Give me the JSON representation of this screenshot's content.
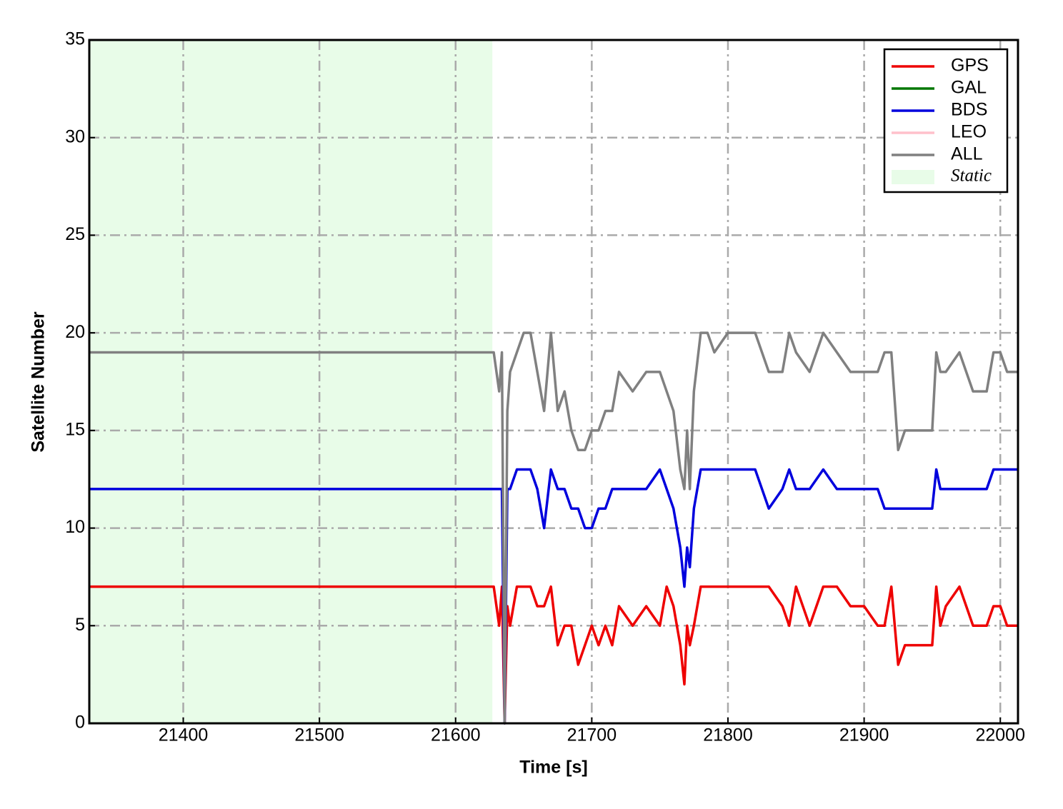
{
  "chart_data": {
    "type": "line",
    "xlabel": "Time [s]",
    "ylabel": "Satellite Number",
    "xlim": [
      21331,
      22013
    ],
    "ylim": [
      0,
      35
    ],
    "xticks": [
      21400,
      21500,
      21600,
      21700,
      21800,
      21900,
      22000
    ],
    "yticks": [
      0,
      5,
      10,
      15,
      20,
      25,
      30,
      35
    ],
    "grid": true,
    "legend": "upper right",
    "shaded_region": {
      "name": "Static",
      "color": "#e8fce8",
      "x": [
        21331,
        21627
      ]
    },
    "x": [
      21331,
      21628,
      21632,
      21634,
      21636,
      21638,
      21640,
      21645,
      21650,
      21655,
      21660,
      21665,
      21670,
      21675,
      21680,
      21685,
      21690,
      21695,
      21700,
      21705,
      21710,
      21715,
      21720,
      21730,
      21740,
      21750,
      21755,
      21760,
      21765,
      21768,
      21770,
      21772,
      21775,
      21780,
      21785,
      21790,
      21800,
      21810,
      21820,
      21830,
      21840,
      21845,
      21850,
      21860,
      21870,
      21880,
      21890,
      21900,
      21910,
      21915,
      21920,
      21925,
      21930,
      21940,
      21950,
      21953,
      21956,
      21960,
      21970,
      21980,
      21990,
      21995,
      22000,
      22005,
      22013
    ],
    "series": [
      {
        "name": "GPS",
        "color": "#ee0000",
        "values": [
          7,
          7,
          5,
          7,
          0,
          6,
          5,
          7,
          7,
          7,
          6,
          6,
          7,
          4,
          5,
          5,
          3,
          4,
          5,
          4,
          5,
          4,
          6,
          5,
          6,
          5,
          7,
          6,
          4,
          2,
          5,
          4,
          5,
          7,
          7,
          7,
          7,
          7,
          7,
          7,
          6,
          5,
          7,
          5,
          7,
          7,
          6,
          6,
          5,
          5,
          7,
          3,
          4,
          4,
          4,
          7,
          5,
          6,
          7,
          5,
          5,
          6,
          6,
          5,
          5
        ]
      },
      {
        "name": "GAL",
        "color": "#007700",
        "values": [
          null,
          null,
          null,
          null,
          null,
          null,
          null,
          null,
          null,
          null,
          null,
          null,
          null,
          null,
          null,
          null,
          null,
          null,
          null,
          null,
          null,
          null,
          null,
          null,
          null,
          null,
          null,
          null,
          null,
          null,
          null,
          null,
          null,
          null,
          null,
          null,
          null,
          null,
          null,
          null,
          null,
          null,
          null,
          null,
          null,
          null,
          null,
          null,
          null,
          null,
          null,
          null,
          null,
          null,
          null,
          null,
          null,
          null,
          null,
          null,
          null,
          null,
          null,
          null,
          null
        ]
      },
      {
        "name": "BDS",
        "color": "#0000dd",
        "values": [
          12,
          12,
          12,
          12,
          0,
          12,
          12,
          13,
          13,
          13,
          12,
          10,
          13,
          12,
          12,
          11,
          11,
          10,
          10,
          11,
          11,
          12,
          12,
          12,
          12,
          13,
          12,
          11,
          9,
          7,
          9,
          8,
          11,
          13,
          13,
          13,
          13,
          13,
          13,
          11,
          12,
          13,
          12,
          12,
          13,
          12,
          12,
          12,
          12,
          11,
          11,
          11,
          11,
          11,
          11,
          13,
          12,
          12,
          12,
          12,
          12,
          13,
          13,
          13,
          13
        ]
      },
      {
        "name": "LEO",
        "color": "#ffc0cb",
        "values": [
          null,
          null,
          null,
          null,
          null,
          null,
          null,
          null,
          null,
          null,
          null,
          null,
          null,
          null,
          null,
          null,
          null,
          null,
          null,
          null,
          null,
          null,
          null,
          null,
          null,
          null,
          null,
          null,
          null,
          null,
          null,
          null,
          null,
          null,
          null,
          null,
          null,
          null,
          null,
          null,
          null,
          null,
          null,
          null,
          null,
          null,
          null,
          null,
          null,
          null,
          null,
          null,
          null,
          null,
          null,
          null,
          null,
          null,
          null,
          null,
          null,
          null,
          null,
          null,
          null
        ]
      },
      {
        "name": "ALL",
        "color": "#808080",
        "values": [
          19,
          19,
          17,
          19,
          0,
          16,
          18,
          19,
          20,
          20,
          18,
          16,
          20,
          16,
          17,
          15,
          14,
          14,
          15,
          15,
          16,
          16,
          18,
          17,
          18,
          18,
          17,
          16,
          13,
          12,
          15,
          12,
          17,
          20,
          20,
          19,
          20,
          20,
          20,
          18,
          18,
          20,
          19,
          18,
          20,
          19,
          18,
          18,
          18,
          19,
          19,
          14,
          15,
          15,
          15,
          19,
          18,
          18,
          19,
          17,
          17,
          19,
          19,
          18,
          18
        ]
      }
    ]
  }
}
